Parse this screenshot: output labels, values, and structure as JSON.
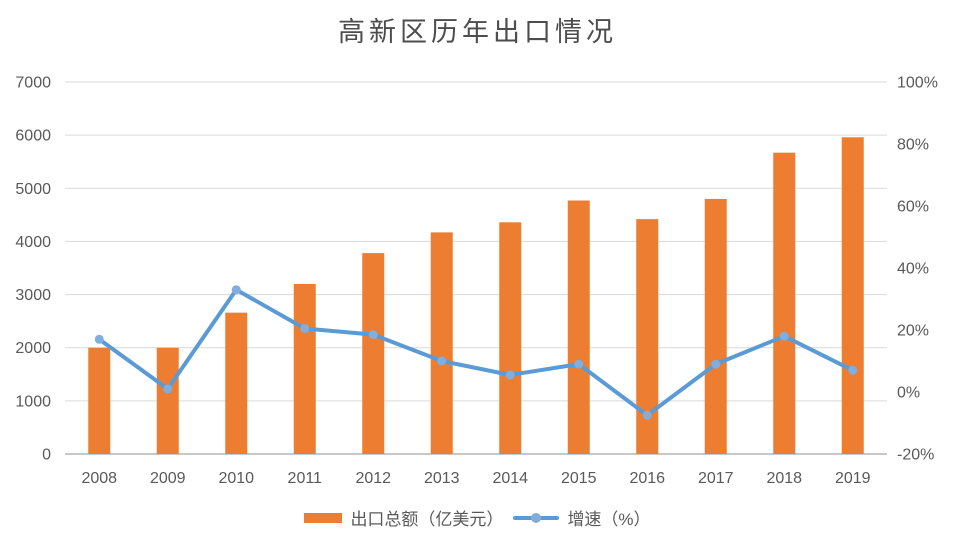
{
  "chart_data": {
    "type": "combo-bar-line",
    "title": "高新区历年出口情况",
    "categories": [
      "2008",
      "2009",
      "2010",
      "2011",
      "2012",
      "2013",
      "2014",
      "2015",
      "2016",
      "2017",
      "2018",
      "2019"
    ],
    "series": [
      {
        "name": "出口总额（亿美元）",
        "type": "bar",
        "axis": "left",
        "color": "#ED7D31",
        "values": [
          2000,
          2000,
          2660,
          3200,
          3780,
          4170,
          4360,
          4770,
          4420,
          4800,
          5670,
          5960
        ]
      },
      {
        "name": "增速（%）",
        "type": "line",
        "axis": "right",
        "color": "#5B9BD5",
        "marker_color": "#7FAEDF",
        "values": [
          17,
          1,
          33,
          20.5,
          18.5,
          10,
          5.5,
          9,
          -7.5,
          9,
          18,
          7
        ]
      }
    ],
    "left_axis": {
      "min": 0,
      "max": 7000,
      "step": 1000,
      "labels": [
        "0",
        "1000",
        "2000",
        "3000",
        "4000",
        "5000",
        "6000",
        "7000"
      ]
    },
    "right_axis": {
      "min": -20,
      "max": 100,
      "step": 20,
      "labels": [
        "-20%",
        "0%",
        "20%",
        "40%",
        "60%",
        "80%",
        "100%"
      ]
    },
    "grid": true,
    "legend_position": "bottom",
    "colors": {
      "grid": "#D9D9D9",
      "axis_line": "#C8C8C8",
      "tick_text": "#595959",
      "title_text": "#4d4d4d"
    }
  }
}
